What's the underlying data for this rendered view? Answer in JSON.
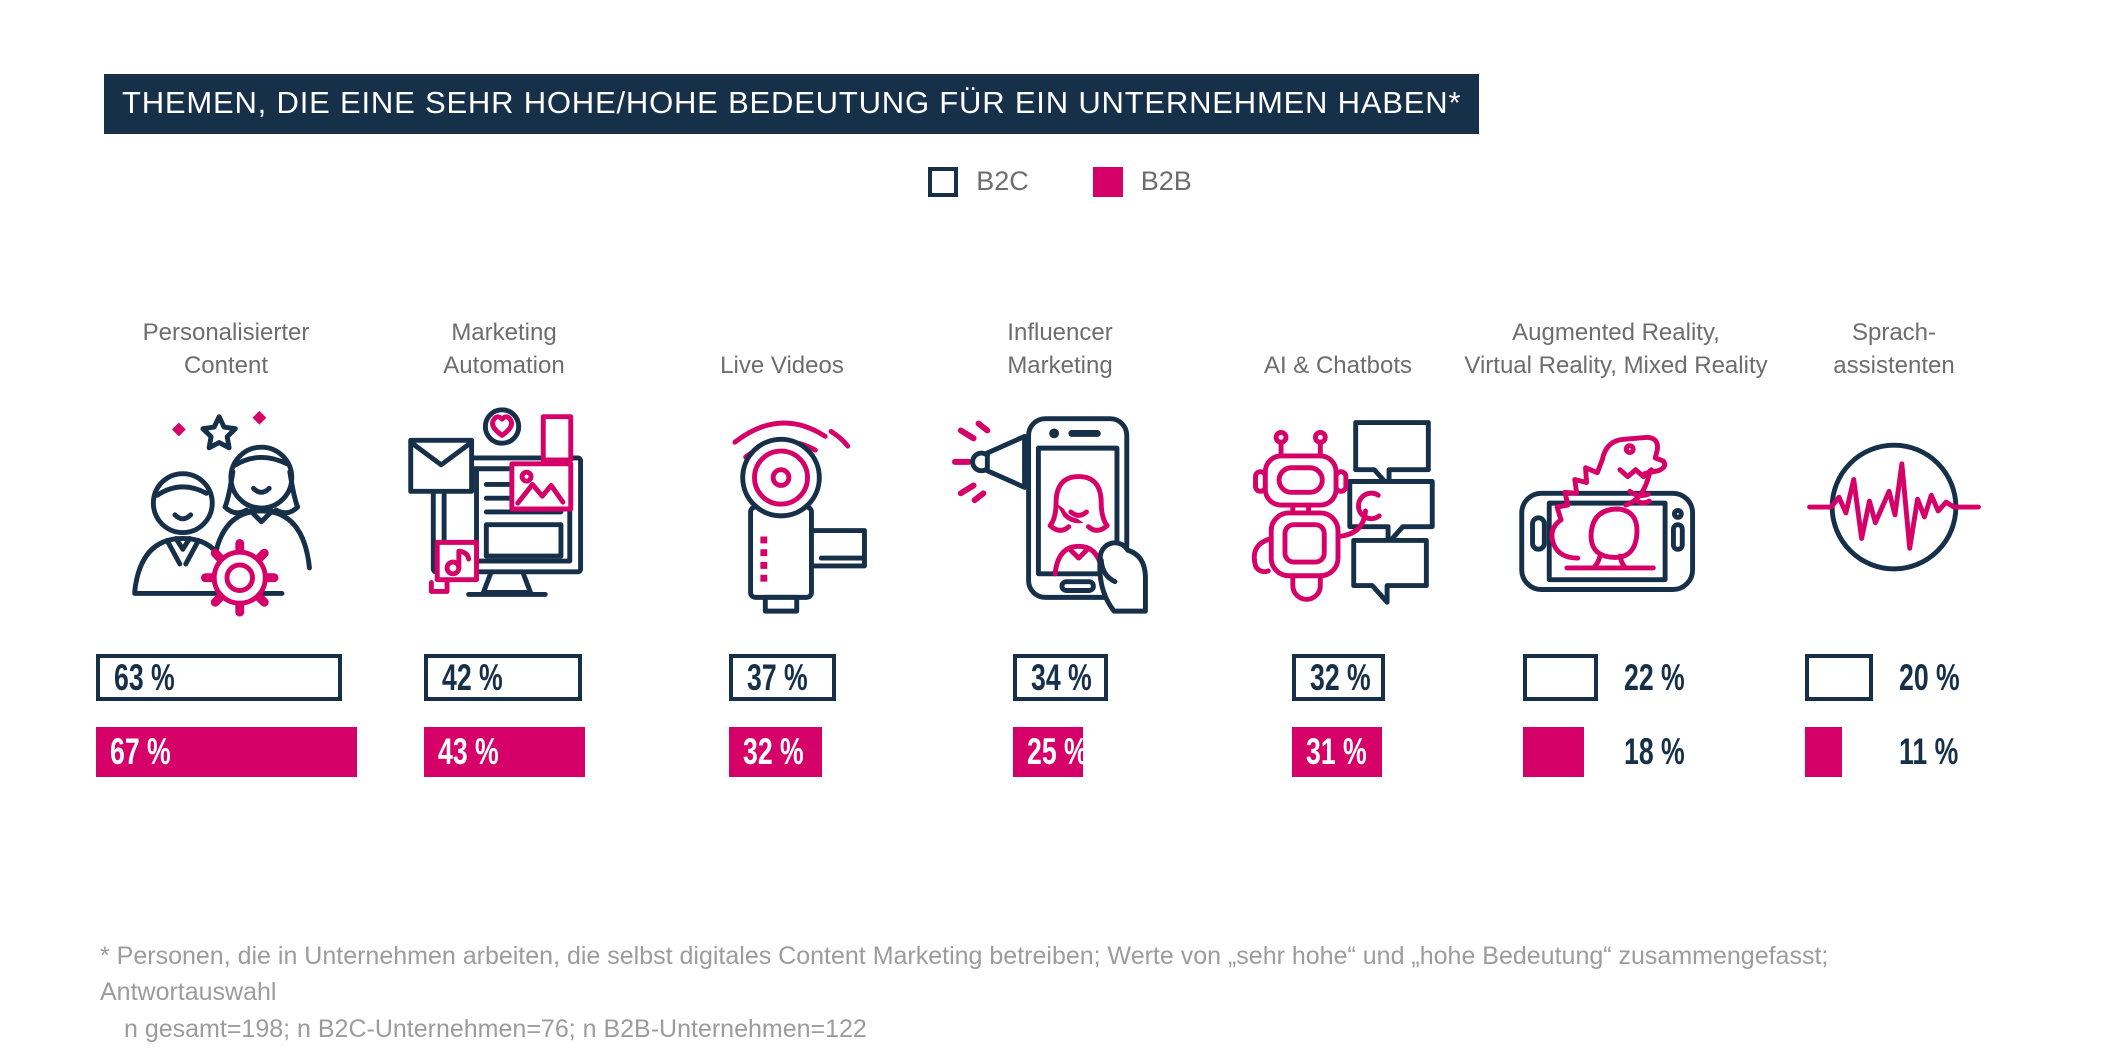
{
  "title_bar": {
    "text": "THEMEN, DIE EINE SEHR HOHE/HOHE BEDEUTUNG FÜR EIN UNTERNEHMEN HABEN*"
  },
  "legend": {
    "items": [
      {
        "label": "B2C",
        "swatch": "outline"
      },
      {
        "label": "B2B",
        "swatch": "filled"
      }
    ]
  },
  "colors": {
    "navy": "#17304a",
    "pink": "#d60069",
    "label_gray": "#6d6d6d",
    "footnote_gray": "#9c9c9c",
    "background": "#ffffff"
  },
  "value_label_format": "{value} %",
  "topics": [
    {
      "id": "personalisierter-content",
      "label_lines": [
        "Personalisierter",
        "Content"
      ],
      "icon": "people-gear-icon",
      "b2c_value": 63,
      "b2b_value": 67,
      "value_labels": "inside"
    },
    {
      "id": "marketing-automation",
      "label_lines": [
        "Marketing",
        "Automation"
      ],
      "icon": "marketing-automation-icon",
      "b2c_value": 42,
      "b2b_value": 43,
      "value_labels": "inside"
    },
    {
      "id": "live-videos",
      "label_lines": [
        "Live Videos"
      ],
      "icon": "video-camera-icon",
      "b2c_value": 37,
      "b2b_value": 32,
      "value_labels": "inside"
    },
    {
      "id": "influencer-marketing",
      "label_lines": [
        "Influencer",
        "Marketing"
      ],
      "icon": "influencer-phone-icon",
      "b2c_value": 34,
      "b2b_value": 25,
      "value_labels": "inside"
    },
    {
      "id": "ai-chatbots",
      "label_lines": [
        "AI & Chatbots"
      ],
      "icon": "chatbot-robot-icon",
      "b2c_value": 32,
      "b2b_value": 31,
      "value_labels": "inside"
    },
    {
      "id": "ar-vr-mr",
      "label_lines": [
        "Augmented Reality,",
        "Virtual Reality, Mixed Reality"
      ],
      "icon": "ar-dinosaur-icon",
      "b2c_value": 22,
      "b2b_value": 18,
      "value_labels": "outside"
    },
    {
      "id": "sprachassistenten",
      "label_lines": [
        "Sprach-",
        "assistenten"
      ],
      "icon": "voice-waveform-icon",
      "b2c_value": 20,
      "b2b_value": 11,
      "value_labels": "outside"
    }
  ],
  "footnote": {
    "line1": "* Personen, die in Unternehmen arbeiten, die selbst digitales Content Marketing betreiben; Werte von „sehr hohe“ und „hohe Bedeutung“ zusammengefasst; Antwortauswahl",
    "line2": "n gesamt=198; n B2C-Unternehmen=76; n B2B-Unternehmen=122"
  },
  "chart_data": {
    "type": "bar",
    "orientation": "horizontal",
    "title": "THEMEN, DIE EINE SEHR HOHE/HOHE BEDEUTUNG FÜR EIN UNTERNEHMEN HABEN*",
    "unit": "%",
    "categories": [
      "Personalisierter Content",
      "Marketing Automation",
      "Live Videos",
      "Influencer Marketing",
      "AI & Chatbots",
      "Augmented Reality, Virtual Reality, Mixed Reality",
      "Sprachassistenten"
    ],
    "series": [
      {
        "name": "B2C",
        "values": [
          63,
          42,
          37,
          34,
          32,
          22,
          20
        ],
        "fill": "#ffffff",
        "border": "#17304a"
      },
      {
        "name": "B2B",
        "values": [
          67,
          43,
          32,
          25,
          31,
          18,
          11
        ],
        "fill": "#d60069"
      }
    ],
    "value_labels": true,
    "legend_position": "top-center",
    "grid": false,
    "xlim": [
      0,
      100
    ],
    "note": "n gesamt=198; n B2C-Unternehmen=76; n B2B-Unternehmen=122"
  }
}
